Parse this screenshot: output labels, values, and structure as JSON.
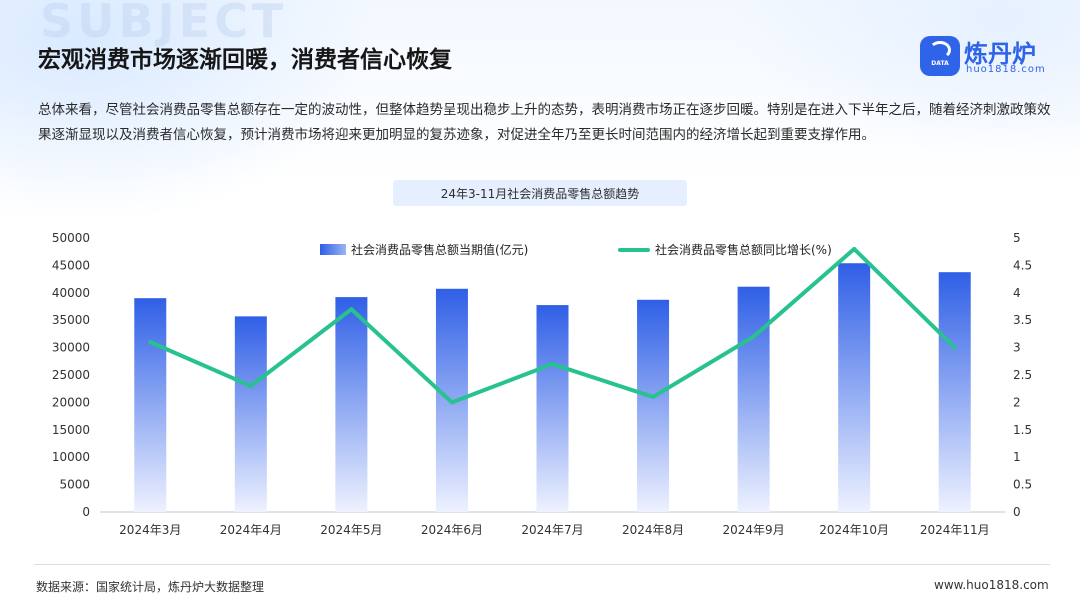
{
  "header": {
    "watermark_word": "SUBJECT",
    "title": "宏观消费市场逐渐回暖，消费者信心恢复"
  },
  "logo": {
    "badge_text": "DATA",
    "name": "炼丹炉",
    "url": "huo1818.com"
  },
  "intro": "总体来看，尽管社会消费品零售总额存在一定的波动性，但整体趋势呈现出稳步上升的态势，表明消费市场正在逐步回暖。特别是在进入下半年之后，随着经济刺激政策效果逐渐显现以及消费者信心恢复，预计消费市场将迎来更加明显的复苏迹象，对促进全年乃至更长时间范围内的经济增长起到重要支撑作用。",
  "chart_data": {
    "type": "bar",
    "title": "24年3-11月社会消费品零售总额趋势",
    "categories": [
      "2024年3月",
      "2024年4月",
      "2024年5月",
      "2024年6月",
      "2024年7月",
      "2024年8月",
      "2024年9月",
      "2024年10月",
      "2024年11月"
    ],
    "series": [
      {
        "name": "社会消费品零售总额当期值(亿元)",
        "kind": "bar",
        "axis": "left",
        "values": [
          39020,
          35699,
          39211,
          40732,
          37757,
          38726,
          41112,
          45396,
          43763
        ]
      },
      {
        "name": "社会消费品零售总额同比增长(%)",
        "kind": "line",
        "axis": "right",
        "values": [
          3.1,
          2.3,
          3.7,
          2.0,
          2.7,
          2.1,
          3.2,
          4.8,
          3.0
        ]
      }
    ],
    "y_left": {
      "min": 0,
      "max": 50000,
      "step": 5000
    },
    "y_right": {
      "min": 0,
      "max": 5,
      "step": 0.5
    },
    "left_ticks": [
      "0",
      "5000",
      "10000",
      "15000",
      "20000",
      "25000",
      "30000",
      "35000",
      "40000",
      "45000",
      "50000"
    ],
    "right_ticks": [
      "0",
      "0.5",
      "1",
      "1.5",
      "2",
      "2.5",
      "3",
      "3.5",
      "4",
      "4.5",
      "5"
    ],
    "legend_position": "top",
    "grid": false,
    "colors": {
      "bar_top": "#2f5fe6",
      "bar_bottom": "#eef2ff",
      "line": "#27c28f"
    }
  },
  "footer": {
    "source": "数据来源：国家统计局，炼丹炉大数据整理",
    "site": "www.huo1818.com"
  }
}
